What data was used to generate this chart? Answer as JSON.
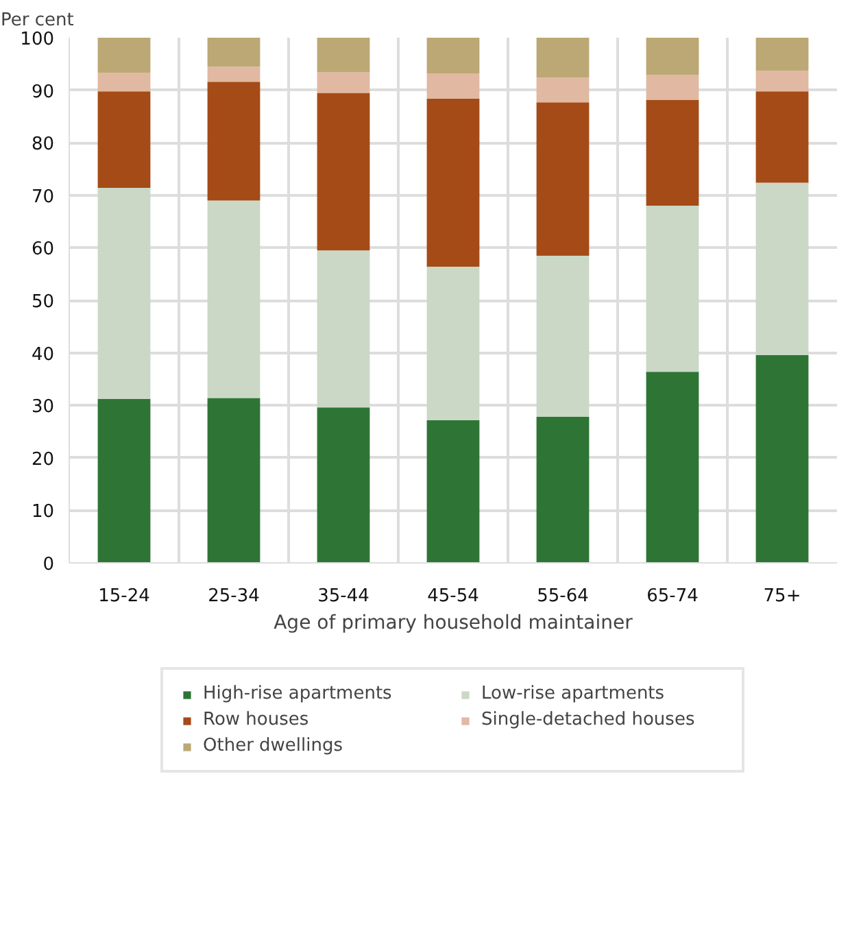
{
  "chart_data": {
    "type": "bar",
    "stacked": true,
    "ylabel": "Per cent",
    "xlabel": "Age of primary household maintainer",
    "categories": [
      "15-24",
      "25-34",
      "35-44",
      "45-54",
      "55-64",
      "65-74",
      "75+"
    ],
    "ylim": [
      0,
      100
    ],
    "yticks": [
      0,
      10,
      20,
      30,
      40,
      50,
      60,
      70,
      80,
      90,
      100
    ],
    "grid": true,
    "legend": "bottom",
    "series": [
      {
        "name": "High-rise apartments",
        "color": "#2e7535",
        "values": [
          31.2,
          31.4,
          29.6,
          27.2,
          27.8,
          36.4,
          39.6
        ]
      },
      {
        "name": "Low-rise apartments",
        "color": "#cad8c5",
        "values": [
          40.2,
          37.6,
          29.9,
          29.2,
          30.7,
          31.6,
          32.8
        ]
      },
      {
        "name": "Row houses",
        "color": "#a54b17",
        "values": [
          18.4,
          22.6,
          30.0,
          32.0,
          29.2,
          20.2,
          17.4
        ]
      },
      {
        "name": "Single-detached houses",
        "color": "#e1b8a1",
        "values": [
          3.5,
          2.9,
          3.9,
          4.8,
          4.7,
          4.7,
          3.9
        ]
      },
      {
        "name": "Other dwellings",
        "color": "#bca874",
        "values": [
          6.7,
          5.5,
          6.6,
          6.8,
          7.6,
          7.1,
          6.3
        ]
      }
    ]
  }
}
